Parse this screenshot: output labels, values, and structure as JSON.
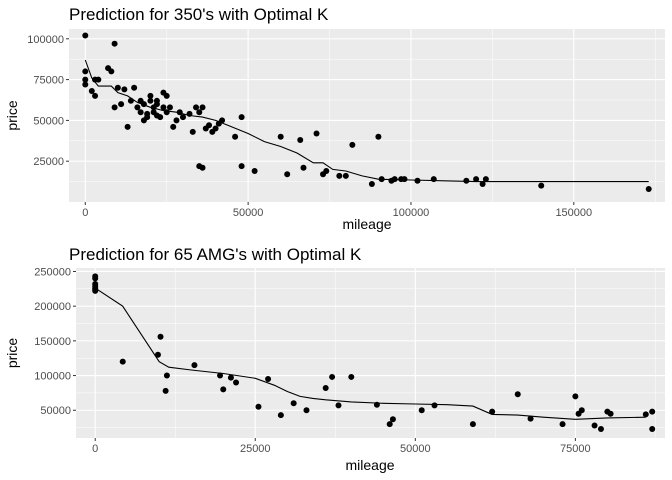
{
  "chart_data": [
    {
      "type": "scatter",
      "title": "Prediction for 350's with Optimal K",
      "xlabel": "mileage",
      "ylabel": "price",
      "xlim": [
        -5000,
        178000
      ],
      "ylim": [
        0,
        106000
      ],
      "xticks": [
        0,
        50000,
        100000,
        150000
      ],
      "xtick_labels": [
        "0",
        "50000",
        "100000",
        "150000"
      ],
      "yticks": [
        25000,
        50000,
        75000,
        100000
      ],
      "ytick_labels": [
        "25000",
        "50000",
        "75000",
        "100000"
      ],
      "grid": true,
      "colors": {
        "panel": "#ebebeb",
        "grid": "#ffffff",
        "points": "#000000",
        "line": "#000000"
      },
      "series": [
        {
          "kind": "points",
          "x": [
            0,
            0,
            0,
            0,
            2000,
            3000,
            3000,
            4000,
            7000,
            8000,
            9000,
            9000,
            10000,
            11000,
            12000,
            13000,
            14000,
            15000,
            16000,
            17000,
            17000,
            18000,
            18000,
            19000,
            19000,
            20000,
            20000,
            21000,
            21000,
            22000,
            22000,
            22000,
            23000,
            24000,
            24000,
            25000,
            25000,
            26000,
            27000,
            28000,
            29000,
            30000,
            32000,
            33000,
            34000,
            35000,
            35000,
            36000,
            36000,
            37000,
            38000,
            39000,
            40000,
            41000,
            42000,
            46000,
            48000,
            48000,
            52000,
            60000,
            62000,
            66000,
            67000,
            71000,
            73000,
            74000,
            78000,
            80000,
            82000,
            88000,
            90000,
            91000,
            94000,
            95000,
            97000,
            98000,
            102000,
            107000,
            117000,
            120000,
            122000,
            123000,
            140000,
            173000
          ],
          "y": [
            102000,
            80000,
            75000,
            72000,
            68000,
            75000,
            65000,
            75000,
            82000,
            80000,
            97000,
            58000,
            70000,
            60000,
            69000,
            46000,
            62000,
            70000,
            58000,
            55000,
            62000,
            50000,
            60000,
            54000,
            52000,
            62000,
            65000,
            58000,
            55000,
            53000,
            62000,
            60000,
            52000,
            67000,
            58000,
            65000,
            55000,
            58000,
            46000,
            50000,
            55000,
            52000,
            54000,
            43000,
            58000,
            55000,
            22000,
            58000,
            21000,
            45000,
            47000,
            43000,
            45000,
            48000,
            50000,
            40000,
            22000,
            52000,
            19000,
            40000,
            17000,
            38000,
            21000,
            42000,
            17000,
            19000,
            16000,
            16000,
            35000,
            11000,
            40000,
            14000,
            13000,
            14000,
            14000,
            14000,
            13000,
            14000,
            13000,
            14000,
            11000,
            14000,
            10000,
            8000
          ]
        },
        {
          "kind": "line",
          "x": [
            0,
            2000,
            4000,
            8000,
            10000,
            13000,
            16000,
            20000,
            24000,
            28000,
            32000,
            36000,
            40000,
            45000,
            50000,
            55000,
            60000,
            65000,
            70000,
            73000,
            76000,
            80000,
            85000,
            90000,
            100000,
            110000,
            120000,
            130000,
            140000,
            150000,
            160000,
            173000
          ],
          "y": [
            87000,
            76000,
            71000,
            71000,
            67000,
            65000,
            61000,
            58000,
            56000,
            55000,
            53000,
            52000,
            50000,
            46000,
            42000,
            37000,
            34000,
            30000,
            24000,
            24000,
            20000,
            19000,
            16000,
            14000,
            13500,
            13000,
            12500,
            12500,
            12500,
            12500,
            12500,
            12500
          ]
        }
      ]
    },
    {
      "type": "scatter",
      "title": "Prediction for 65 AMG's with Optimal K",
      "xlabel": "mileage",
      "ylabel": "price",
      "xlim": [
        -3000,
        89000
      ],
      "ylim": [
        10000,
        255000
      ],
      "xticks": [
        0,
        25000,
        50000,
        75000
      ],
      "xtick_labels": [
        "0",
        "25000",
        "50000",
        "75000"
      ],
      "yticks": [
        50000,
        100000,
        150000,
        200000,
        250000
      ],
      "ytick_labels": [
        "50000",
        "100000",
        "150000",
        "200000",
        "250000"
      ],
      "grid": true,
      "colors": {
        "panel": "#ebebeb",
        "grid": "#ffffff",
        "points": "#000000",
        "line": "#000000"
      },
      "series": [
        {
          "kind": "points",
          "x": [
            0,
            0,
            0,
            0,
            0,
            0,
            0,
            4300,
            9800,
            10200,
            11000,
            11200,
            15500,
            19500,
            20000,
            21200,
            22000,
            25500,
            27000,
            29000,
            31000,
            33000,
            36000,
            37000,
            38000,
            40000,
            44000,
            46000,
            46500,
            51000,
            53000,
            59000,
            62000,
            66000,
            68000,
            73000,
            75000,
            75500,
            76000,
            78000,
            79000,
            80000,
            80500,
            86000,
            87000,
            87000
          ],
          "y": [
            243000,
            240000,
            232000,
            229000,
            226000,
            224000,
            222000,
            120000,
            130000,
            156000,
            78000,
            100000,
            115000,
            100000,
            80000,
            97000,
            90000,
            55000,
            95000,
            43000,
            60000,
            50000,
            82000,
            98000,
            57000,
            98000,
            58000,
            30000,
            37000,
            50000,
            57000,
            30000,
            48000,
            73000,
            38000,
            30000,
            70000,
            45000,
            50000,
            28000,
            23000,
            48000,
            45000,
            44000,
            48000,
            23000
          ]
        },
        {
          "kind": "line",
          "x": [
            0,
            4300,
            10000,
            11500,
            15000,
            20000,
            25000,
            28000,
            30000,
            32000,
            34000,
            36000,
            40000,
            45000,
            50000,
            55000,
            59000,
            62000,
            66000,
            70000,
            75000,
            80000,
            86000
          ],
          "y": [
            226000,
            200000,
            120000,
            112000,
            108000,
            103000,
            96000,
            86000,
            77000,
            70000,
            67000,
            65000,
            62000,
            60000,
            59000,
            58000,
            56000,
            44000,
            43000,
            40000,
            37000,
            39000,
            40000
          ]
        }
      ]
    }
  ]
}
